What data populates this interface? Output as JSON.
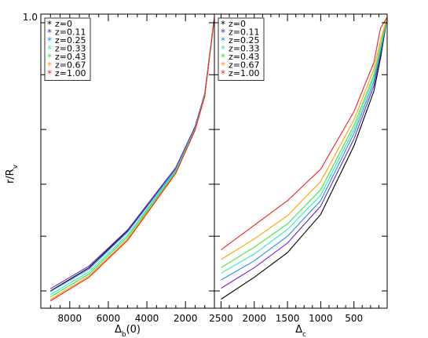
{
  "chart_data": [
    {
      "type": "line",
      "panel": "left",
      "xlabel": "Δb(0)",
      "ylabel": "r/Rv",
      "xlim": [
        9500,
        500
      ],
      "ylim": [
        0.0,
        1.0
      ],
      "x_reversed": true,
      "x_ticks": [
        8000,
        6000,
        4000,
        2000
      ],
      "x_tick_labels": [
        "8000",
        "6000",
        "4000",
        "2000"
      ],
      "y_ticks": [
        1.0
      ],
      "y_tick_labels": [
        "1.0"
      ],
      "legend_placement": "top-left",
      "series": [
        {
          "name": "z=0",
          "color": "#000000",
          "x": [
            9000,
            7000,
            5000,
            2500,
            1500,
            1000,
            500
          ],
          "y": [
            0.0,
            0.085,
            0.22,
            0.45,
            0.6,
            0.72,
            1.0
          ]
        },
        {
          "name": "z=0.11",
          "color": "#7020c8",
          "x": [
            9000,
            7000,
            5000,
            2500,
            1500,
            1000,
            500
          ],
          "y": [
            0.008,
            0.091,
            0.223,
            0.451,
            0.6,
            0.72,
            1.0
          ]
        },
        {
          "name": "z=0.25",
          "color": "#2a8cf0",
          "x": [
            9000,
            7000,
            5000,
            2500,
            1500,
            1000,
            500
          ],
          "y": [
            -0.002,
            0.08,
            0.215,
            0.445,
            0.595,
            0.717,
            1.0
          ]
        },
        {
          "name": "z=0.33",
          "color": "#30e8c8",
          "x": [
            9000,
            7000,
            5000,
            2500,
            1500,
            1000,
            500
          ],
          "y": [
            -0.013,
            0.07,
            0.205,
            0.44,
            0.592,
            0.715,
            1.0
          ]
        },
        {
          "name": "z=0.43",
          "color": "#38e838",
          "x": [
            9000,
            7000,
            5000,
            2500,
            1500,
            1000,
            500
          ],
          "y": [
            -0.022,
            0.062,
            0.198,
            0.436,
            0.59,
            0.713,
            1.0
          ]
        },
        {
          "name": "z=0.67",
          "color": "#ffa000",
          "x": [
            9000,
            7000,
            5000,
            2500,
            1500,
            1000,
            500
          ],
          "y": [
            -0.031,
            0.055,
            0.19,
            0.432,
            0.588,
            0.712,
            1.0
          ]
        },
        {
          "name": "z=1.00",
          "color": "#f02020",
          "x": [
            9000,
            7000,
            5000,
            2500,
            1500,
            1000,
            500
          ],
          "y": [
            -0.036,
            0.05,
            0.185,
            0.43,
            0.587,
            0.711,
            1.0
          ]
        }
      ]
    },
    {
      "type": "line",
      "panel": "right",
      "xlabel": "Δc",
      "ylabel": "",
      "xlim": [
        2600,
        0
      ],
      "ylim": [
        0.0,
        1.0
      ],
      "x_reversed": true,
      "x_ticks": [
        2500,
        2000,
        1500,
        1000,
        500
      ],
      "x_tick_labels": [
        "2500",
        "2000",
        "1500",
        "1000",
        "500"
      ],
      "legend_placement": "top-left",
      "series": [
        {
          "name": "z=0",
          "color": "#000000",
          "x": [
            2500,
            2000,
            1500,
            1000,
            500,
            200,
            100,
            0
          ],
          "y": [
            -0.03,
            0.05,
            0.14,
            0.28,
            0.53,
            0.73,
            0.85,
            1.0
          ]
        },
        {
          "name": "z=0.11",
          "color": "#7020c8",
          "x": [
            2500,
            2000,
            1500,
            1000,
            500,
            200,
            100,
            0
          ],
          "y": [
            0.01,
            0.085,
            0.175,
            0.31,
            0.555,
            0.75,
            0.865,
            1.0
          ]
        },
        {
          "name": "z=0.25",
          "color": "#2a8cf0",
          "x": [
            2500,
            2000,
            1500,
            1000,
            500,
            200,
            100,
            0
          ],
          "y": [
            0.04,
            0.11,
            0.2,
            0.33,
            0.575,
            0.765,
            0.875,
            1.0
          ]
        },
        {
          "name": "z=0.33",
          "color": "#30e8c8",
          "x": [
            2500,
            2000,
            1500,
            1000,
            500,
            200,
            100,
            0
          ],
          "y": [
            0.065,
            0.135,
            0.225,
            0.35,
            0.59,
            0.78,
            0.885,
            1.0
          ]
        },
        {
          "name": "z=0.43",
          "color": "#38e838",
          "x": [
            2500,
            2000,
            1500,
            1000,
            500,
            200,
            100,
            0
          ],
          "y": [
            0.085,
            0.16,
            0.245,
            0.37,
            0.605,
            0.79,
            0.895,
            1.0
          ]
        },
        {
          "name": "z=0.67",
          "color": "#ffa000",
          "x": [
            2500,
            2000,
            1500,
            1000,
            500,
            200,
            100,
            0
          ],
          "y": [
            0.115,
            0.19,
            0.275,
            0.4,
            0.625,
            0.81,
            0.915,
            1.0
          ]
        },
        {
          "name": "z=1.00",
          "color": "#f02020",
          "x": [
            2500,
            2000,
            1500,
            1000,
            500,
            200,
            100,
            0
          ],
          "y": [
            0.15,
            0.24,
            0.33,
            0.445,
            0.655,
            0.835,
            0.96,
            1.0
          ]
        }
      ]
    }
  ]
}
